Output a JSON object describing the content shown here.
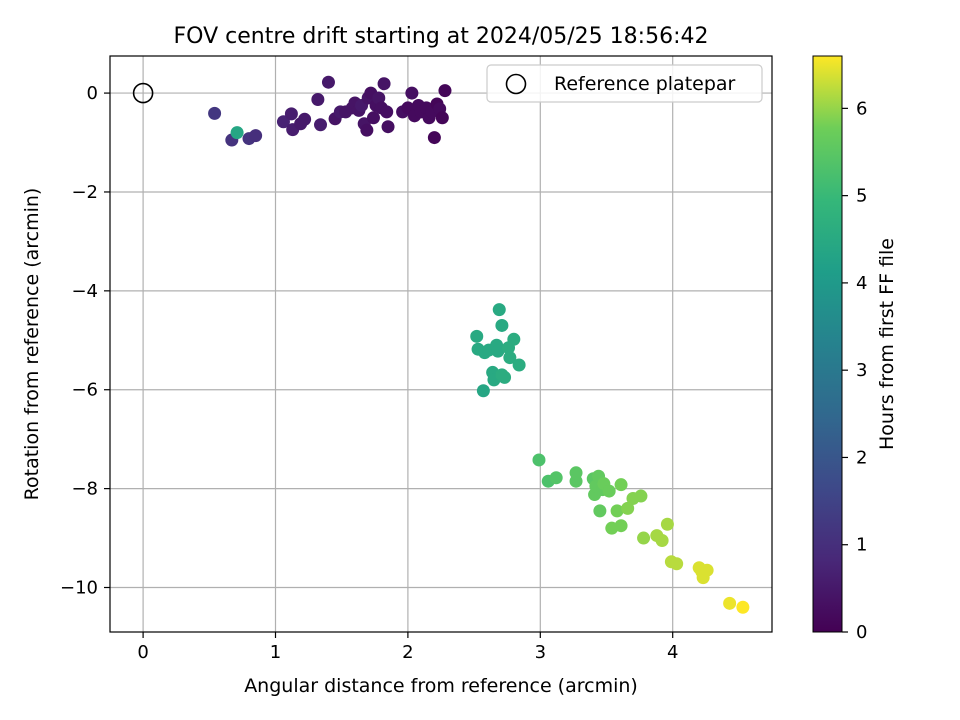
{
  "chart_data": {
    "type": "scatter",
    "title": "FOV centre drift starting at 2024/05/25 18:56:42",
    "xlabel": "Angular distance from reference (arcmin)",
    "ylabel": "Rotation from reference (arcmin)",
    "xlim": [
      -0.25,
      4.75
    ],
    "ylim": [
      -10.9,
      0.75
    ],
    "x_ticks": [
      0,
      1,
      2,
      3,
      4
    ],
    "y_ticks": [
      0,
      -2,
      -4,
      -6,
      -8,
      -10
    ],
    "grid": true,
    "legend": {
      "placement": "top-right",
      "entries": [
        "Reference platepar"
      ]
    },
    "reference_point": {
      "x": 0,
      "y": 0
    },
    "colorbar": {
      "label": "Hours from first FF file",
      "range": [
        0,
        6.6
      ],
      "ticks": [
        0,
        1,
        2,
        3,
        4,
        5,
        6
      ],
      "colormap": "viridis"
    },
    "series": [
      {
        "points": [
          [
            0.54,
            -0.41,
            1.2
          ],
          [
            0.67,
            -0.95,
            1.1
          ],
          [
            0.71,
            -0.8,
            4.4
          ],
          [
            0.8,
            -0.92,
            1.1
          ],
          [
            0.85,
            -0.86,
            1.0
          ],
          [
            1.06,
            -0.58,
            0.7
          ],
          [
            1.12,
            -0.42,
            0.6
          ],
          [
            1.13,
            -0.74,
            0.6
          ],
          [
            1.19,
            -0.62,
            0.5
          ],
          [
            1.22,
            -0.53,
            0.5
          ],
          [
            1.32,
            -0.13,
            0.5
          ],
          [
            1.34,
            -0.64,
            0.6
          ],
          [
            1.4,
            0.22,
            0.5
          ],
          [
            1.45,
            -0.52,
            0.4
          ],
          [
            1.49,
            -0.38,
            0.5
          ],
          [
            1.53,
            -0.38,
            0.4
          ],
          [
            1.58,
            -0.3,
            0.4
          ],
          [
            1.6,
            -0.2,
            0.4
          ],
          [
            1.63,
            -0.35,
            0.4
          ],
          [
            1.65,
            -0.25,
            0.5
          ],
          [
            1.67,
            -0.62,
            0.4
          ],
          [
            1.69,
            -0.75,
            0.3
          ],
          [
            1.7,
            -0.1,
            0.4
          ],
          [
            1.72,
            -0.0,
            0.3
          ],
          [
            1.74,
            -0.5,
            0.3
          ],
          [
            1.76,
            -0.25,
            0.3
          ],
          [
            1.78,
            -0.1,
            0.4
          ],
          [
            1.8,
            -0.3,
            0.3
          ],
          [
            1.82,
            0.19,
            0.4
          ],
          [
            1.84,
            -0.38,
            0.3
          ],
          [
            1.85,
            -0.68,
            0.3
          ],
          [
            1.96,
            -0.38,
            0.3
          ],
          [
            2.0,
            -0.3,
            0.2
          ],
          [
            2.03,
            -0.0,
            0.3
          ],
          [
            2.05,
            -0.46,
            0.2
          ],
          [
            2.08,
            -0.25,
            0.2
          ],
          [
            2.1,
            -0.38,
            0.2
          ],
          [
            2.14,
            -0.3,
            0.2
          ],
          [
            2.16,
            -0.5,
            0.2
          ],
          [
            2.18,
            -0.38,
            0.2
          ],
          [
            2.2,
            -0.9,
            0.1
          ],
          [
            2.22,
            -0.22,
            0.1
          ],
          [
            2.24,
            -0.32,
            0.2
          ],
          [
            2.26,
            -0.5,
            0.1
          ],
          [
            2.28,
            0.05,
            0.1
          ],
          [
            2.52,
            -4.92,
            4.5
          ],
          [
            2.53,
            -5.18,
            4.5
          ],
          [
            2.57,
            -6.02,
            4.4
          ],
          [
            2.58,
            -5.25,
            4.5
          ],
          [
            2.61,
            -5.2,
            4.5
          ],
          [
            2.64,
            -5.65,
            4.5
          ],
          [
            2.65,
            -5.8,
            4.5
          ],
          [
            2.67,
            -5.1,
            4.5
          ],
          [
            2.68,
            -5.22,
            4.5
          ],
          [
            2.69,
            -4.38,
            4.5
          ],
          [
            2.71,
            -5.7,
            4.6
          ],
          [
            2.71,
            -4.7,
            4.5
          ],
          [
            2.73,
            -5.75,
            4.6
          ],
          [
            2.76,
            -5.15,
            4.6
          ],
          [
            2.77,
            -5.35,
            4.6
          ],
          [
            2.8,
            -4.98,
            4.6
          ],
          [
            2.84,
            -5.5,
            4.6
          ],
          [
            2.99,
            -7.42,
            5.3
          ],
          [
            3.06,
            -7.85,
            5.3
          ],
          [
            3.12,
            -7.78,
            5.4
          ],
          [
            3.27,
            -7.85,
            5.5
          ],
          [
            3.27,
            -7.68,
            5.5
          ],
          [
            3.4,
            -7.8,
            5.5
          ],
          [
            3.41,
            -8.12,
            5.6
          ],
          [
            3.42,
            -7.95,
            5.6
          ],
          [
            3.44,
            -7.75,
            5.6
          ],
          [
            3.45,
            -8.45,
            5.6
          ],
          [
            3.47,
            -8.02,
            5.6
          ],
          [
            3.48,
            -7.9,
            5.7
          ],
          [
            3.52,
            -8.05,
            5.7
          ],
          [
            3.54,
            -8.8,
            5.8
          ],
          [
            3.58,
            -8.45,
            5.8
          ],
          [
            3.61,
            -7.92,
            5.8
          ],
          [
            3.61,
            -8.75,
            5.8
          ],
          [
            3.66,
            -8.4,
            5.9
          ],
          [
            3.7,
            -8.2,
            5.9
          ],
          [
            3.76,
            -8.15,
            5.9
          ],
          [
            3.78,
            -9.0,
            6.0
          ],
          [
            3.88,
            -8.95,
            6.1
          ],
          [
            3.92,
            -9.05,
            6.1
          ],
          [
            3.96,
            -8.72,
            6.1
          ],
          [
            3.99,
            -9.48,
            6.2
          ],
          [
            4.03,
            -9.52,
            6.2
          ],
          [
            4.2,
            -9.6,
            6.4
          ],
          [
            4.22,
            -9.68,
            6.4
          ],
          [
            4.23,
            -9.8,
            6.4
          ],
          [
            4.26,
            -9.65,
            6.4
          ],
          [
            4.43,
            -10.32,
            6.5
          ],
          [
            4.53,
            -10.4,
            6.6
          ]
        ]
      }
    ]
  }
}
